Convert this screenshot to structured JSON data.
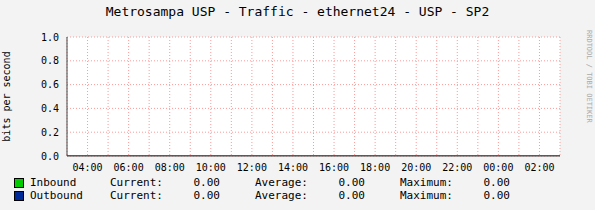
{
  "chart_data": {
    "type": "line",
    "title": "Metrosampa USP - Traffic - ethernet24 - USP - SP2",
    "y_label": "bits per second",
    "watermark": "RRDTOOL / TOBI OETIKER",
    "categories": [
      null,
      "04:00",
      null,
      "06:00",
      null,
      "08:00",
      null,
      "10:00",
      null,
      "12:00",
      null,
      "14:00",
      null,
      "16:00",
      null,
      "18:00",
      null,
      "20:00",
      null,
      "22:00",
      null,
      "00:00",
      null,
      "02:00",
      null
    ],
    "series": [
      {
        "name": "Inbound",
        "type": "area",
        "color": "#00cc00",
        "values": [
          0,
          0,
          0,
          0,
          0,
          0,
          0,
          0,
          0,
          0,
          0,
          0,
          0,
          0,
          0,
          0,
          0,
          0,
          0,
          0,
          0,
          0,
          0,
          0,
          0
        ],
        "stats": [
          {
            "value": 0,
            "label": "0.00"
          },
          {
            "value": 0,
            "label": "0.00"
          },
          {
            "value": 0,
            "label": "0.00"
          }
        ]
      },
      {
        "name": "Outbound",
        "type": "line",
        "color": "#002a97",
        "values": [
          0,
          0,
          0,
          0,
          0,
          0,
          0,
          0,
          0,
          0,
          0,
          0,
          0,
          0,
          0,
          0,
          0,
          0,
          0,
          0,
          0,
          0,
          0,
          0,
          0
        ],
        "stats": [
          {
            "value": 0,
            "label": "0.00"
          },
          {
            "value": 0,
            "label": "0.00"
          },
          {
            "value": 0,
            "label": "0.00"
          }
        ]
      }
    ],
    "stat_labels": [
      "Current:",
      "Average:",
      "Maximum:"
    ],
    "ylim": [
      0,
      1
    ],
    "yticks": [
      {
        "value": 0,
        "label": "0.0"
      },
      0.2,
      0.4,
      0.6,
      0.8,
      {
        "value": 1,
        "label": "1.0"
      }
    ],
    "grid": true
  }
}
